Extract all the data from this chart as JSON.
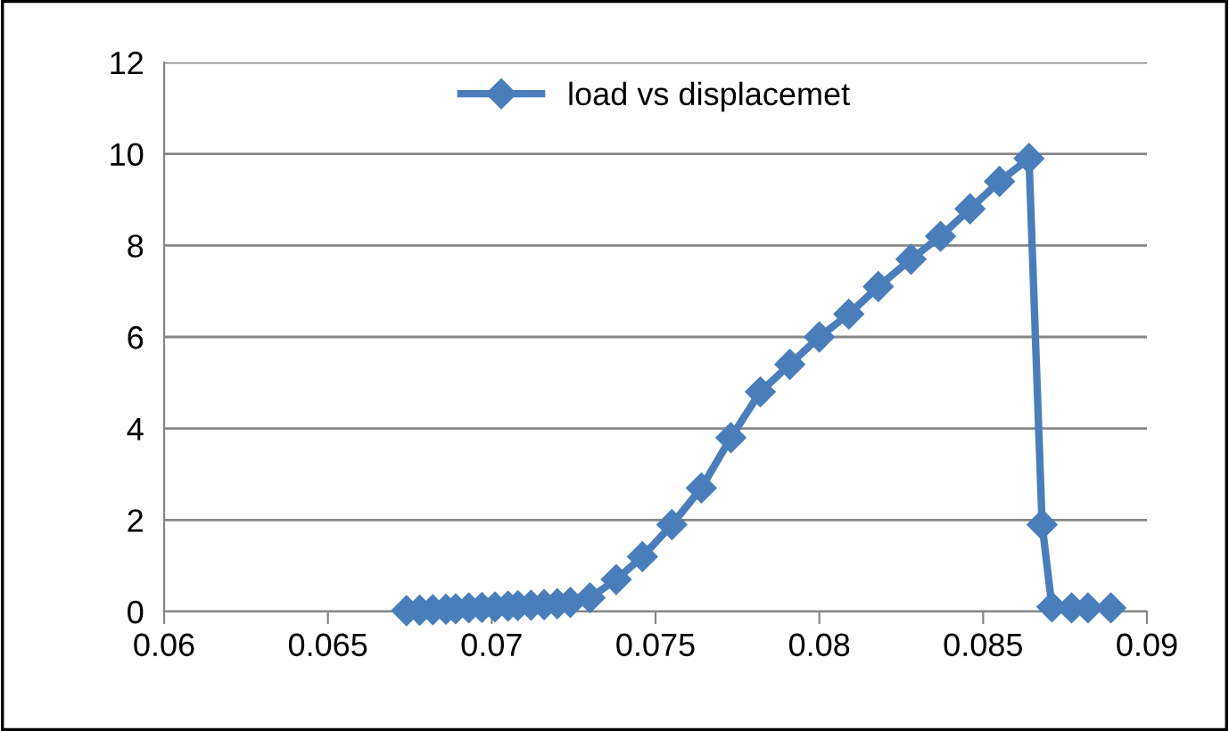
{
  "chart_data": {
    "type": "line",
    "series": [
      {
        "name": "load vs displacemet",
        "color": "#4a7ebb",
        "x": [
          0.0674,
          0.0678,
          0.0682,
          0.0686,
          0.0689,
          0.0693,
          0.0697,
          0.0701,
          0.0705,
          0.0708,
          0.0712,
          0.0716,
          0.072,
          0.0724,
          0.073,
          0.0738,
          0.0746,
          0.0755,
          0.0764,
          0.0773,
          0.0782,
          0.0791,
          0.08,
          0.0809,
          0.0818,
          0.0828,
          0.0837,
          0.0846,
          0.0855,
          0.0864,
          0.0868,
          0.0871,
          0.0877,
          0.0882,
          0.0889
        ],
        "values": [
          0.02,
          0.03,
          0.04,
          0.05,
          0.06,
          0.08,
          0.09,
          0.1,
          0.12,
          0.13,
          0.14,
          0.15,
          0.17,
          0.2,
          0.3,
          0.7,
          1.2,
          1.9,
          2.7,
          3.8,
          4.8,
          5.4,
          6.0,
          6.5,
          7.1,
          7.7,
          8.2,
          8.8,
          9.4,
          9.9,
          1.9,
          0.1,
          0.08,
          0.08,
          0.08
        ]
      }
    ],
    "xlim": [
      0.06,
      0.09
    ],
    "xticks": [
      0.06,
      0.065,
      0.07,
      0.075,
      0.08,
      0.085,
      0.09
    ],
    "ylim": [
      0,
      12
    ],
    "yticks": [
      0,
      2,
      4,
      6,
      8,
      10,
      12
    ],
    "grid": "y",
    "legend": "top",
    "marker": "diamond",
    "line_style": "solid"
  }
}
